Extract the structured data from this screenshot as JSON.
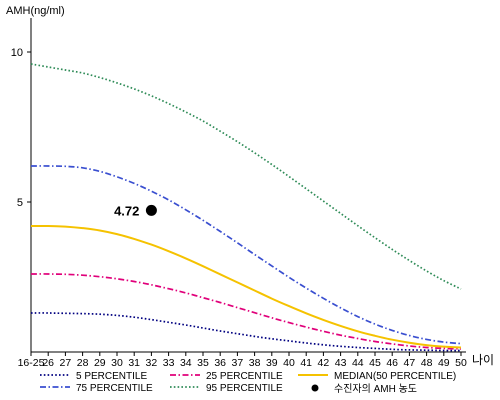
{
  "chart_data": {
    "type": "line",
    "ylabel": "AMH(ng/ml)",
    "xlabel": "나이",
    "y_ticks": [
      "10",
      "5"
    ],
    "x_ticks": [
      "16-25",
      "26",
      "27",
      "28",
      "29",
      "30",
      "31",
      "32",
      "33",
      "34",
      "35",
      "36",
      "37",
      "38",
      "39",
      "40",
      "41",
      "42",
      "43",
      "44",
      "45",
      "46",
      "47",
      "48",
      "49",
      "50"
    ],
    "ylim": [
      0,
      10.8
    ],
    "grid": false,
    "legend_position": "bottom",
    "series": [
      {
        "name": "5 PERCENTILE",
        "color": "#000080",
        "style": "dotted",
        "values": [
          1.3,
          1.3,
          1.29,
          1.28,
          1.26,
          1.22,
          1.16,
          1.08,
          0.99,
          0.9,
          0.8,
          0.7,
          0.61,
          0.52,
          0.44,
          0.37,
          0.3,
          0.24,
          0.19,
          0.15,
          0.12,
          0.09,
          0.07,
          0.06,
          0.05,
          0.05
        ]
      },
      {
        "name": "25 PERCENTILE",
        "color": "#e0007a",
        "style": "dashdot",
        "values": [
          2.6,
          2.6,
          2.59,
          2.56,
          2.51,
          2.44,
          2.35,
          2.24,
          2.11,
          1.97,
          1.81,
          1.65,
          1.48,
          1.31,
          1.14,
          0.98,
          0.83,
          0.69,
          0.56,
          0.45,
          0.35,
          0.27,
          0.2,
          0.15,
          0.12,
          0.1
        ]
      },
      {
        "name": "MEDIAN(50 PERCENTILE)",
        "color": "#f5c200",
        "style": "solid",
        "values": [
          4.2,
          4.2,
          4.18,
          4.13,
          4.05,
          3.93,
          3.77,
          3.58,
          3.36,
          3.12,
          2.86,
          2.59,
          2.32,
          2.05,
          1.78,
          1.53,
          1.29,
          1.07,
          0.87,
          0.69,
          0.54,
          0.41,
          0.31,
          0.23,
          0.18,
          0.15
        ]
      },
      {
        "name": "75 PERCENTILE",
        "color": "#3a4fd0",
        "style": "dashdot",
        "values": [
          6.2,
          6.2,
          6.19,
          6.14,
          6.02,
          5.84,
          5.62,
          5.36,
          5.07,
          4.74,
          4.39,
          4.02,
          3.64,
          3.25,
          2.87,
          2.49,
          2.13,
          1.79,
          1.47,
          1.18,
          0.93,
          0.72,
          0.55,
          0.42,
          0.33,
          0.28
        ]
      },
      {
        "name": "95 PERCENTILE",
        "color": "#2e8b57",
        "style": "dotted",
        "values": [
          9.6,
          9.5,
          9.4,
          9.3,
          9.15,
          8.97,
          8.77,
          8.54,
          8.28,
          8.0,
          7.7,
          7.36,
          7.01,
          6.64,
          6.25,
          5.85,
          5.44,
          5.03,
          4.62,
          4.21,
          3.81,
          3.42,
          3.05,
          2.7,
          2.38,
          2.1
        ]
      }
    ],
    "marker": {
      "name": "수진자의 AMH 농도",
      "x": "32",
      "y": 4.72,
      "label": "4.72",
      "color": "#000000"
    }
  }
}
